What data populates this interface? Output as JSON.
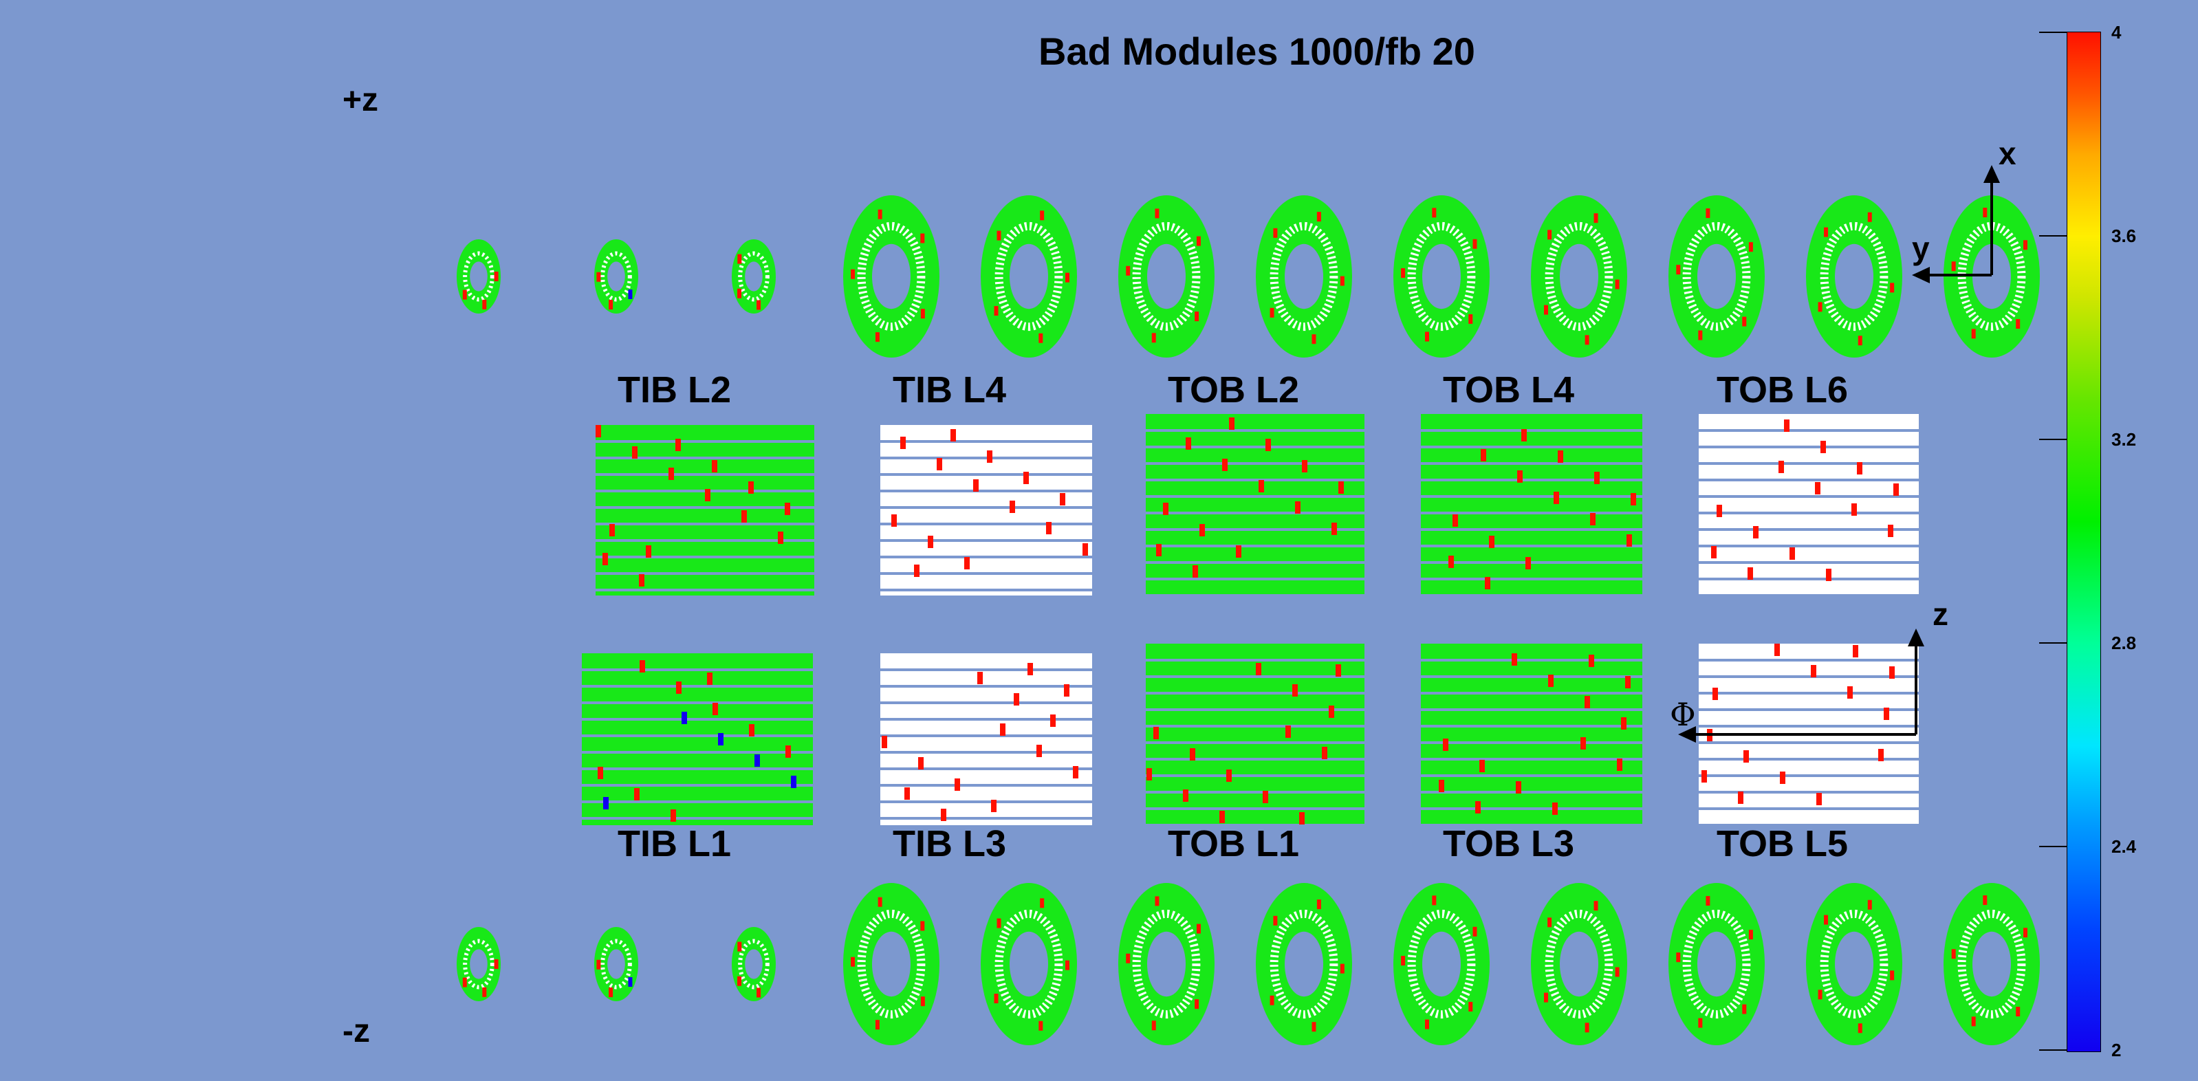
{
  "title": "Bad Modules 1000/fb 20",
  "plus_z": "+z",
  "minus_z": "-z",
  "top_layers": [
    "TIB L2",
    "TIB L4",
    "TOB L2",
    "TOB L4",
    "TOB L6"
  ],
  "bottom_layers": [
    "TIB L1",
    "TIB L3",
    "TOB L1",
    "TOB L3",
    "TOB L5"
  ],
  "axes_top": {
    "x": "x",
    "y": "y"
  },
  "axes_bottom": {
    "z": "z",
    "phi": "Φ"
  },
  "colorbar": {
    "min": 2,
    "max": 4,
    "tick_labels": [
      "4",
      "3.6",
      "3.2",
      "2.8",
      "2.4",
      "2"
    ],
    "colors": [
      "#1100f0",
      "#0099ff",
      "#00ff99",
      "#00f000",
      "#cfe600",
      "#ffee00",
      "#ff1100"
    ]
  },
  "colors": {
    "background": "#7c98cf",
    "good": "#18e818",
    "bad": "#ff1100",
    "low": "#1100f0",
    "empty": "#ffffff"
  }
}
